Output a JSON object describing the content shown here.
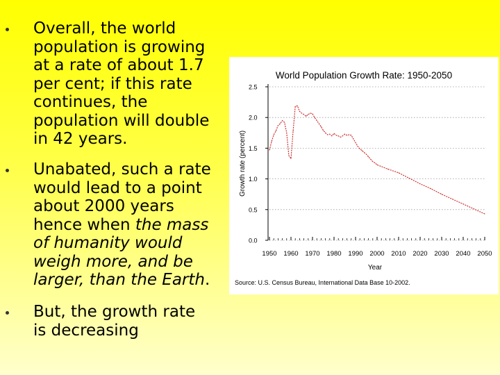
{
  "bullets": [
    {
      "lines": [
        "Overall, the world",
        "population is growing",
        "at a rate of about 1.7",
        "per cent; if this rate",
        "continues, the",
        "population will double",
        "in 42 years."
      ]
    },
    {
      "lines": [
        [
          {
            "t": "Unabated, such a rate"
          }
        ],
        [
          {
            "t": "would lead to a point"
          }
        ],
        [
          {
            "t": "about 2000 years"
          }
        ],
        [
          {
            "t": "hence when "
          },
          {
            "t": "the mass",
            "i": true
          }
        ],
        [
          {
            "t": "of humanity would",
            "i": true
          }
        ],
        [
          {
            "t": "weigh more, and be",
            "i": true
          }
        ],
        [
          {
            "t": "larger, than the Earth",
            "i": true
          },
          {
            "t": "."
          }
        ]
      ]
    },
    {
      "lines": [
        "But,  the growth rate",
        "is decreasing"
      ]
    }
  ],
  "chart_data": {
    "type": "line",
    "title": "World Population Growth Rate: 1950-2050",
    "xlabel": "Year",
    "ylabel": "Growth rate (percent)",
    "source": "Source: U.S. Census Bureau, International Data Base 10-2002.",
    "xlim": [
      1950,
      2050
    ],
    "ylim": [
      0,
      2.5
    ],
    "x_ticks": [
      1950,
      1960,
      1970,
      1980,
      1990,
      2000,
      2010,
      2020,
      2030,
      2040,
      2050
    ],
    "y_ticks": [
      "0.0",
      "0.5",
      "1.0",
      "1.5",
      "2.0",
      "2.5"
    ],
    "series": [
      {
        "name": "Growth rate",
        "color": "#cc2222",
        "x": [
          1950,
          1951,
          1952,
          1953,
          1954,
          1955,
          1956,
          1957,
          1958,
          1959,
          1960,
          1961,
          1962,
          1963,
          1964,
          1965,
          1966,
          1967,
          1968,
          1969,
          1970,
          1971,
          1972,
          1973,
          1974,
          1975,
          1976,
          1977,
          1978,
          1979,
          1980,
          1981,
          1982,
          1983,
          1984,
          1985,
          1986,
          1987,
          1988,
          1989,
          1990,
          1991,
          1992,
          1993,
          1994,
          1995,
          1996,
          1997,
          1998,
          1999,
          2000,
          2005,
          2010,
          2015,
          2020,
          2025,
          2030,
          2035,
          2040,
          2045,
          2050
        ],
        "y": [
          1.47,
          1.61,
          1.72,
          1.78,
          1.87,
          1.9,
          1.95,
          1.92,
          1.75,
          1.38,
          1.33,
          1.78,
          2.18,
          2.19,
          2.1,
          2.07,
          2.05,
          2.02,
          2.05,
          2.07,
          2.06,
          2.0,
          1.95,
          1.9,
          1.85,
          1.79,
          1.75,
          1.72,
          1.73,
          1.7,
          1.74,
          1.71,
          1.7,
          1.68,
          1.7,
          1.73,
          1.71,
          1.72,
          1.71,
          1.65,
          1.59,
          1.53,
          1.49,
          1.46,
          1.43,
          1.4,
          1.36,
          1.32,
          1.28,
          1.26,
          1.23,
          1.16,
          1.1,
          1.01,
          0.92,
          0.84,
          0.75,
          0.67,
          0.59,
          0.51,
          0.43
        ]
      }
    ]
  }
}
